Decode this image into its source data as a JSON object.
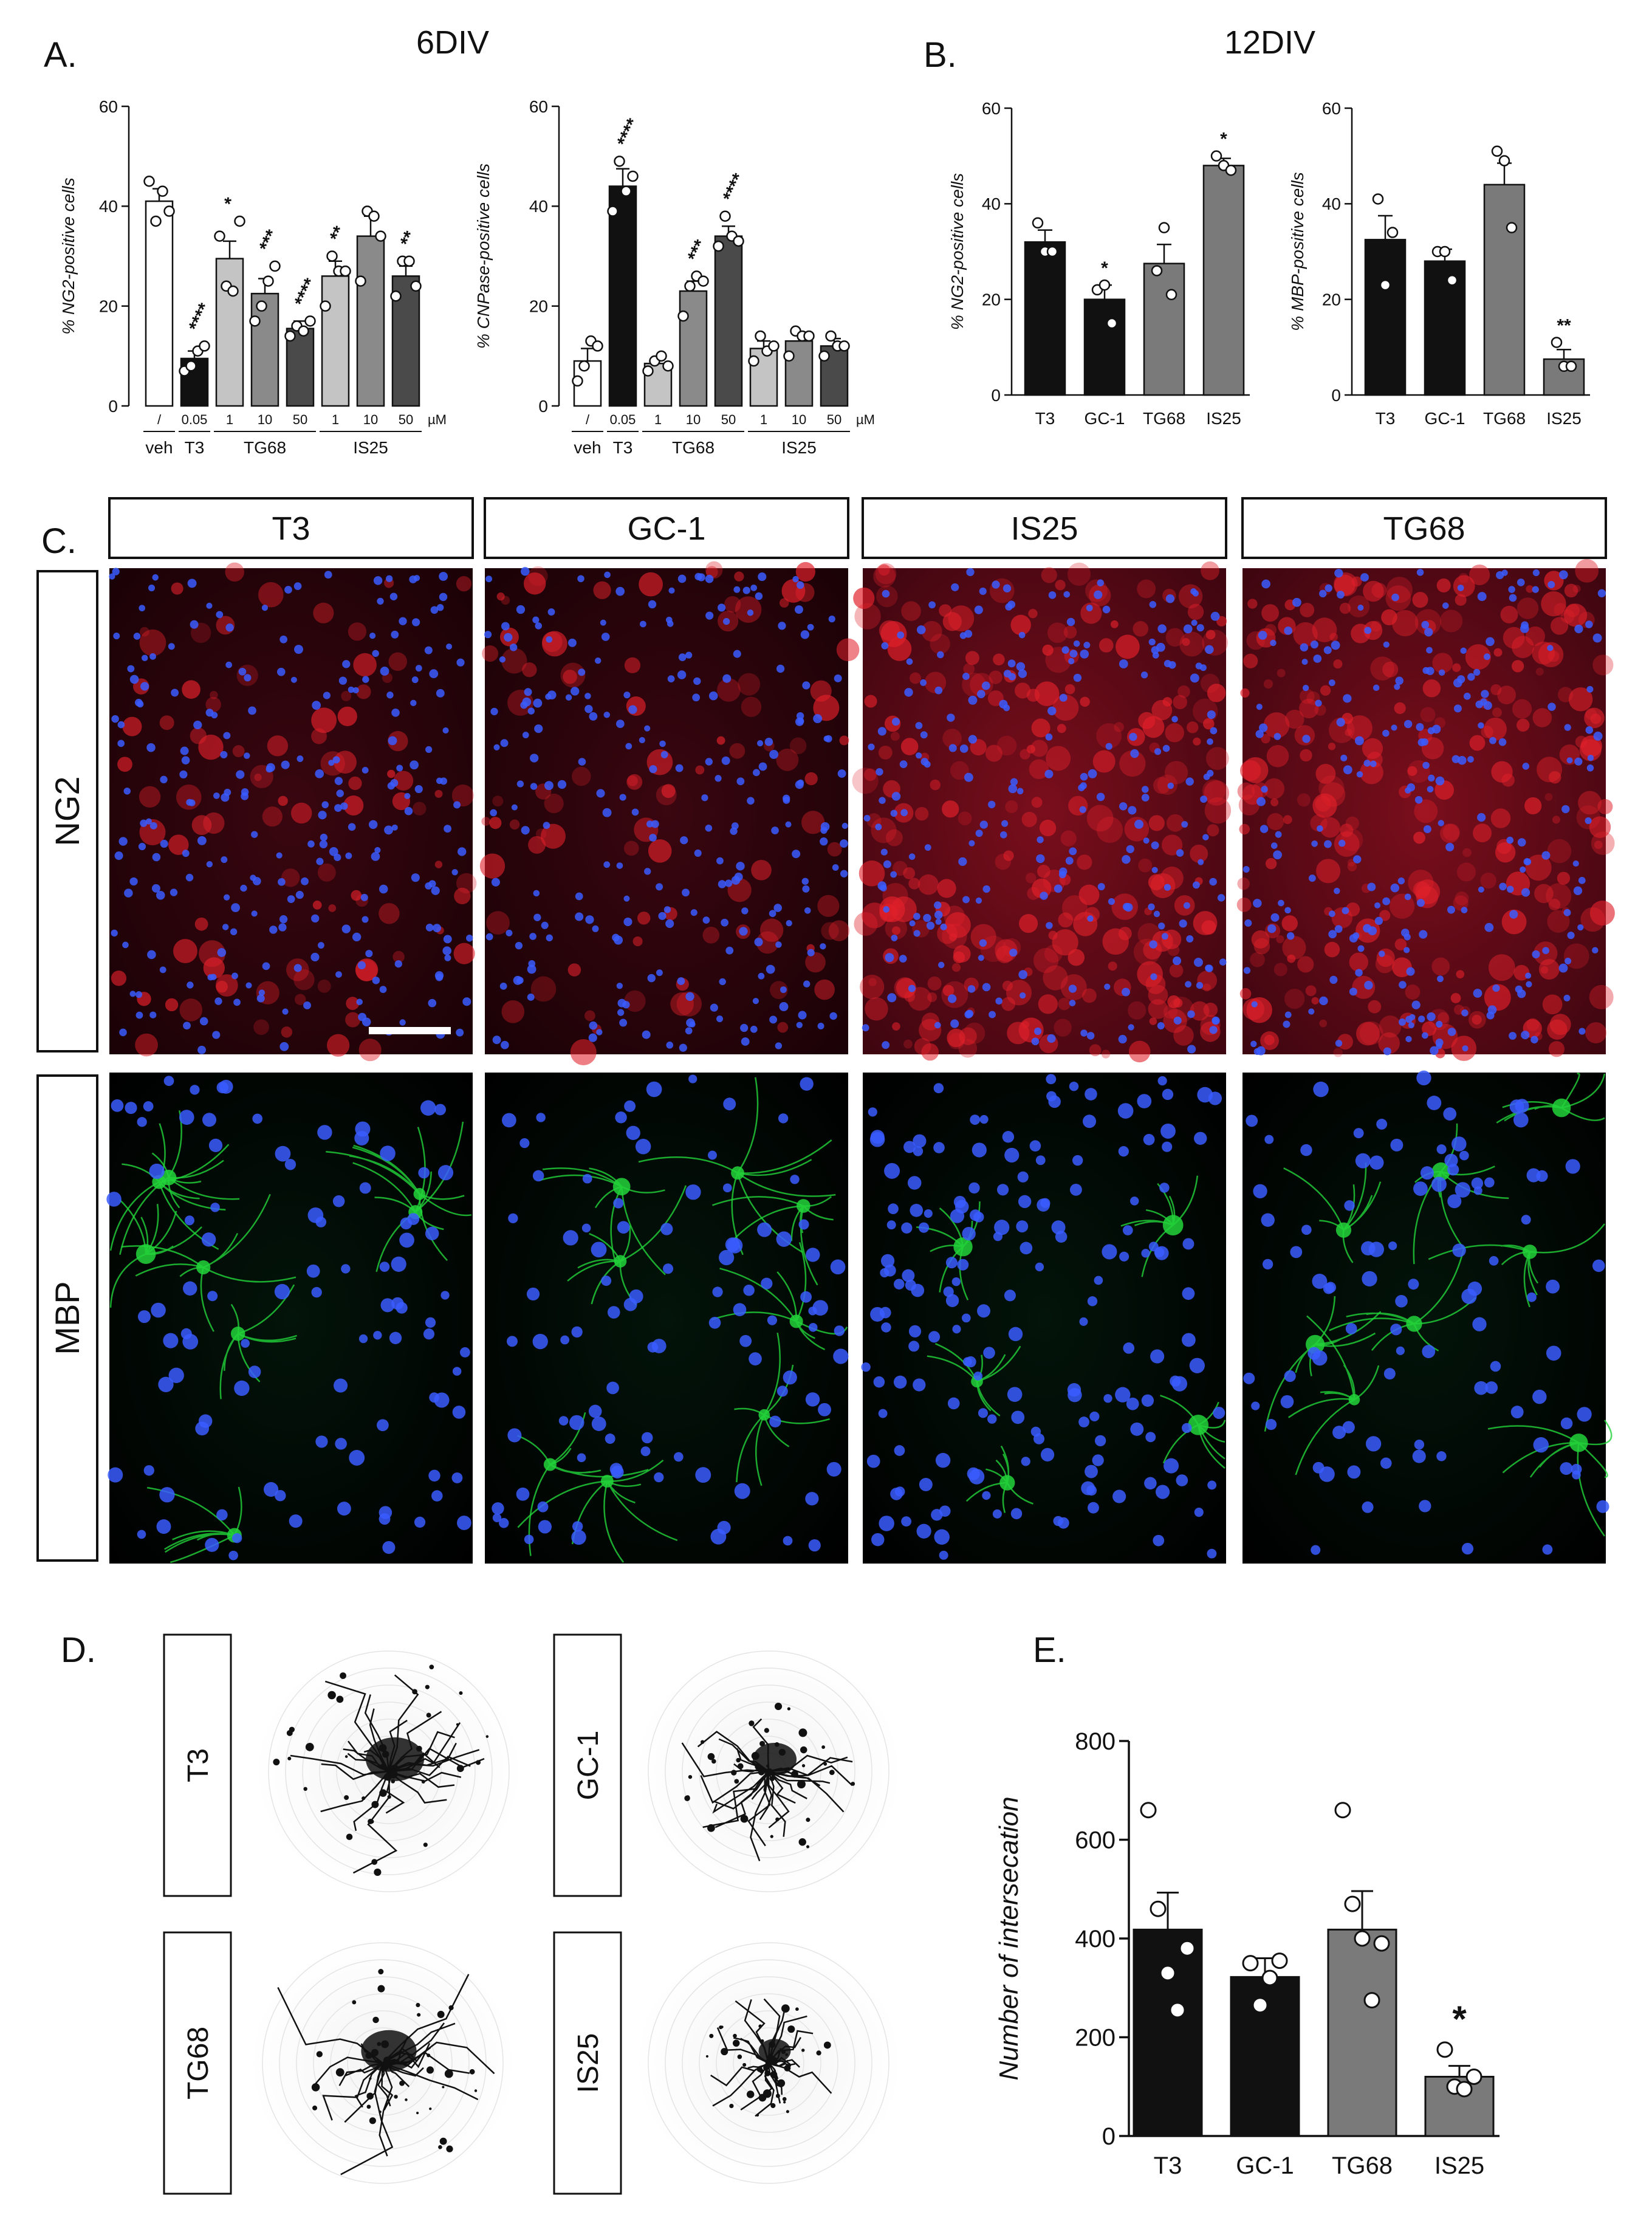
{
  "panels": {
    "a": {
      "label": "A.",
      "title": "6DIV"
    },
    "b": {
      "label": "B.",
      "title": "12DIV"
    },
    "c": {
      "label": "C."
    },
    "d": {
      "label": "D."
    },
    "e": {
      "label": "E."
    }
  },
  "panel_c": {
    "columns": [
      "T3",
      "GC-1",
      "IS25",
      "TG68"
    ],
    "rows": [
      "NG2",
      "MBP"
    ],
    "colors": {
      "ng2_stain": "#e0202a",
      "mbp_stain": "#22d43a",
      "nuclei": "#3a5cff",
      "background": "#000000"
    }
  },
  "panel_d": {
    "labels": [
      "T3",
      "GC-1",
      "TG68",
      "IS25"
    ]
  },
  "chart_data": [
    {
      "id": "a1",
      "type": "bar",
      "ylabel": "% NG2-positive cells",
      "ylim": [
        0,
        60
      ],
      "yticks": [
        "0",
        "20",
        "40",
        "60"
      ],
      "conc_labels": [
        "/",
        "0.05",
        "1",
        "10",
        "50",
        "1",
        "10",
        "50"
      ],
      "unit_label": "µM",
      "groups": [
        {
          "label": "veh",
          "bars": [
            0
          ]
        },
        {
          "label": "T3",
          "bars": [
            1
          ]
        },
        {
          "label": "TG68",
          "bars": [
            2,
            3,
            4
          ]
        },
        {
          "label": "IS25",
          "bars": [
            5,
            6,
            7
          ]
        }
      ],
      "values": [
        41,
        9.5,
        29.5,
        22.5,
        15.5,
        26,
        34,
        26
      ],
      "errors": [
        2.5,
        1.5,
        3.5,
        3,
        1.5,
        3,
        4,
        2
      ],
      "points": [
        [
          45,
          37,
          43,
          39
        ],
        [
          7,
          8,
          11,
          12
        ],
        [
          34,
          24,
          23,
          37
        ],
        [
          17,
          20,
          25,
          28
        ],
        [
          14,
          16,
          15,
          17
        ],
        [
          20,
          30,
          27,
          27
        ],
        [
          25,
          39,
          38,
          34
        ],
        [
          22,
          29,
          29,
          24
        ]
      ],
      "stars": [
        "",
        "****",
        "*",
        "***",
        "****",
        "**",
        "",
        "**"
      ],
      "colors": [
        "#ffffff",
        "#111111",
        "#c4c4c4",
        "#8a8a8a",
        "#4a4a4a",
        "#c4c4c4",
        "#8a8a8a",
        "#4a4a4a"
      ]
    },
    {
      "id": "a2",
      "type": "bar",
      "ylabel": "% CNPase-positive cells",
      "ylim": [
        0,
        60
      ],
      "yticks": [
        "0",
        "20",
        "40",
        "60"
      ],
      "conc_labels": [
        "/",
        "0.05",
        "1",
        "10",
        "50",
        "1",
        "10",
        "50"
      ],
      "unit_label": "µM",
      "groups": [
        {
          "label": "veh",
          "bars": [
            0
          ]
        },
        {
          "label": "T3",
          "bars": [
            1
          ]
        },
        {
          "label": "TG68",
          "bars": [
            2,
            3,
            4
          ]
        },
        {
          "label": "IS25",
          "bars": [
            5,
            6,
            7
          ]
        }
      ],
      "values": [
        9,
        44,
        8.5,
        23,
        34,
        11.5,
        13,
        12
      ],
      "errors": [
        2.5,
        3.5,
        1,
        2,
        2,
        1.5,
        1.5,
        1.5
      ],
      "points": [
        [
          5,
          8,
          13,
          12
        ],
        [
          39,
          49,
          43,
          46
        ],
        [
          7,
          9,
          10,
          8
        ],
        [
          18,
          24,
          26,
          25
        ],
        [
          32,
          38,
          34,
          33
        ],
        [
          9,
          14,
          11,
          12
        ],
        [
          10,
          15,
          14,
          14
        ],
        [
          10,
          14,
          12,
          12
        ]
      ],
      "stars": [
        "",
        "****",
        "",
        "***",
        "****",
        "",
        "",
        ""
      ],
      "colors": [
        "#ffffff",
        "#111111",
        "#c4c4c4",
        "#8a8a8a",
        "#4a4a4a",
        "#c4c4c4",
        "#8a8a8a",
        "#4a4a4a"
      ]
    },
    {
      "id": "b1",
      "type": "bar",
      "ylabel": "% NG2-positive cells",
      "ylim": [
        0,
        60
      ],
      "yticks": [
        "0",
        "20",
        "40",
        "60"
      ],
      "categories": [
        "T3",
        "GC-1",
        "TG68",
        "IS25"
      ],
      "values": [
        32,
        20,
        27.5,
        48
      ],
      "errors": [
        2.5,
        3,
        4,
        1.5
      ],
      "points": [
        [
          36,
          30,
          30
        ],
        [
          22,
          23,
          15
        ],
        [
          26,
          35,
          21
        ],
        [
          50,
          48,
          47
        ]
      ],
      "stars": [
        "",
        "*",
        "",
        "*"
      ],
      "colors": [
        "#111111",
        "#111111",
        "#7a7a7a",
        "#7a7a7a"
      ]
    },
    {
      "id": "b2",
      "type": "bar",
      "ylabel": "% MBP-positive cells",
      "ylim": [
        0,
        60
      ],
      "yticks": [
        "0",
        "20",
        "40",
        "60"
      ],
      "categories": [
        "T3",
        "GC-1",
        "TG68",
        "IS25"
      ],
      "values": [
        32.5,
        28,
        44,
        7.5
      ],
      "errors": [
        5,
        2.5,
        4.5,
        2
      ],
      "points": [
        [
          41,
          23,
          34
        ],
        [
          30,
          30,
          24
        ],
        [
          51,
          49,
          35
        ],
        [
          11,
          6,
          6
        ]
      ],
      "stars": [
        "",
        "",
        "",
        "**"
      ],
      "colors": [
        "#111111",
        "#111111",
        "#7a7a7a",
        "#7a7a7a"
      ]
    },
    {
      "id": "e",
      "type": "bar",
      "ylabel": "Number of intersecation",
      "ylim": [
        0,
        800
      ],
      "yticks": [
        "0",
        "200",
        "400",
        "600",
        "800"
      ],
      "categories": [
        "T3",
        "GC-1",
        "TG68",
        "IS25"
      ],
      "values": [
        418,
        322,
        418,
        120
      ],
      "errors": [
        75,
        38,
        78,
        22
      ],
      "points": [
        [
          660,
          460,
          330,
          255,
          380
        ],
        [
          350,
          265,
          320,
          355
        ],
        [
          660,
          470,
          400,
          275,
          390
        ],
        [
          175,
          100,
          95,
          120
        ]
      ],
      "stars": [
        "",
        "",
        "",
        "*"
      ],
      "colors": [
        "#111111",
        "#111111",
        "#7a7a7a",
        "#7a7a7a"
      ]
    }
  ]
}
